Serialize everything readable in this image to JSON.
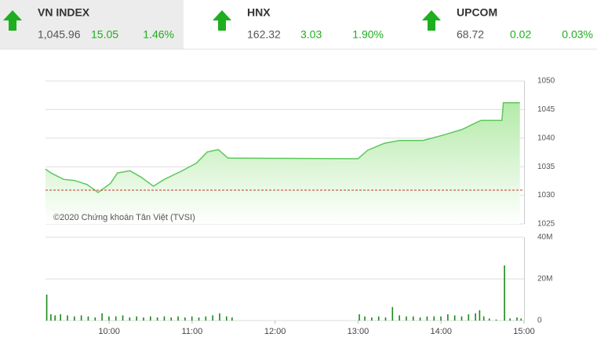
{
  "header": {
    "tickers": [
      {
        "name": "VN INDEX",
        "price": "1,045.96",
        "change": "15.05",
        "percent": "1.46%"
      },
      {
        "name": "HNX",
        "price": "162.32",
        "change": "3.03",
        "percent": "1.90%"
      },
      {
        "name": "UPCOM",
        "price": "68.72",
        "change": "0.02",
        "percent": "0.03%"
      }
    ]
  },
  "chart_data": [
    {
      "type": "line",
      "annotation": "©2020 Chứng khoán Tân Việt (TVSI)",
      "color": "#5cc85c",
      "reference": 1030.91,
      "reference_color": "#c0392b",
      "x": [
        "09:14",
        "09:18",
        "09:27",
        "09:35",
        "09:44",
        "09:52",
        "10:01",
        "10:06",
        "10:15",
        "10:23",
        "10:32",
        "10:40",
        "10:52",
        "11:03",
        "11:11",
        "11:19",
        "11:26",
        "11:30",
        "13:00",
        "13:07",
        "13:19",
        "13:30",
        "13:47",
        "14:01",
        "14:15",
        "14:27",
        "14:29",
        "14:44",
        "14:45",
        "14:57"
      ],
      "values": [
        1034.6,
        1033.9,
        1032.8,
        1032.6,
        1031.9,
        1030.5,
        1032.1,
        1033.9,
        1034.3,
        1033.2,
        1031.6,
        1032.8,
        1034.2,
        1035.6,
        1037.6,
        1038.0,
        1036.5,
        1036.5,
        1036.4,
        1037.9,
        1039.1,
        1039.6,
        1039.6,
        1040.5,
        1041.5,
        1042.9,
        1043.1,
        1043.1,
        1046.2,
        1046.2
      ],
      "xlim": [
        "09:14",
        "15:00"
      ],
      "ylim": [
        1025,
        1050
      ],
      "yticks": [
        1025,
        1030,
        1035,
        1040,
        1045,
        1050
      ],
      "grid": true
    },
    {
      "type": "bar",
      "color": "#1a8a1a",
      "x": [
        "09:15",
        "09:18",
        "09:21",
        "09:25",
        "09:30",
        "09:35",
        "09:40",
        "09:45",
        "09:50",
        "09:55",
        "10:00",
        "10:05",
        "10:10",
        "10:15",
        "10:20",
        "10:25",
        "10:30",
        "10:35",
        "10:40",
        "10:45",
        "10:50",
        "10:55",
        "11:00",
        "11:05",
        "11:10",
        "11:15",
        "11:20",
        "11:25",
        "11:29",
        "13:01",
        "13:05",
        "13:10",
        "13:15",
        "13:20",
        "13:25",
        "13:30",
        "13:35",
        "13:40",
        "13:45",
        "13:50",
        "13:55",
        "14:00",
        "14:05",
        "14:10",
        "14:15",
        "14:20",
        "14:25",
        "14:28",
        "14:31",
        "14:35",
        "14:40",
        "14:46",
        "14:50",
        "14:55",
        "14:58"
      ],
      "values": [
        12.5,
        3,
        2.5,
        3,
        2.5,
        2,
        2.5,
        2,
        1.5,
        3.5,
        2,
        2,
        2.5,
        1.5,
        2,
        1.5,
        2,
        1.5,
        2,
        1.5,
        2,
        1.5,
        2,
        1.5,
        2,
        2.5,
        3.5,
        2,
        1.5,
        3,
        2,
        1.5,
        2,
        1.5,
        6.5,
        2.5,
        2,
        2,
        1.5,
        2,
        2,
        2,
        3,
        2.5,
        2,
        3,
        3.5,
        5,
        2,
        1,
        0.5,
        26.5,
        1,
        1.5,
        1
      ],
      "xlim": [
        "09:14",
        "15:00"
      ],
      "ylim": [
        0,
        40
      ],
      "yticks": [
        0,
        {
          "value": 20,
          "label": "20M"
        },
        {
          "value": 40,
          "label": "40M"
        }
      ],
      "xticks": [
        "10:00",
        "11:00",
        "12:00",
        "13:00",
        "14:00",
        "15:00"
      ],
      "grid": true
    }
  ]
}
